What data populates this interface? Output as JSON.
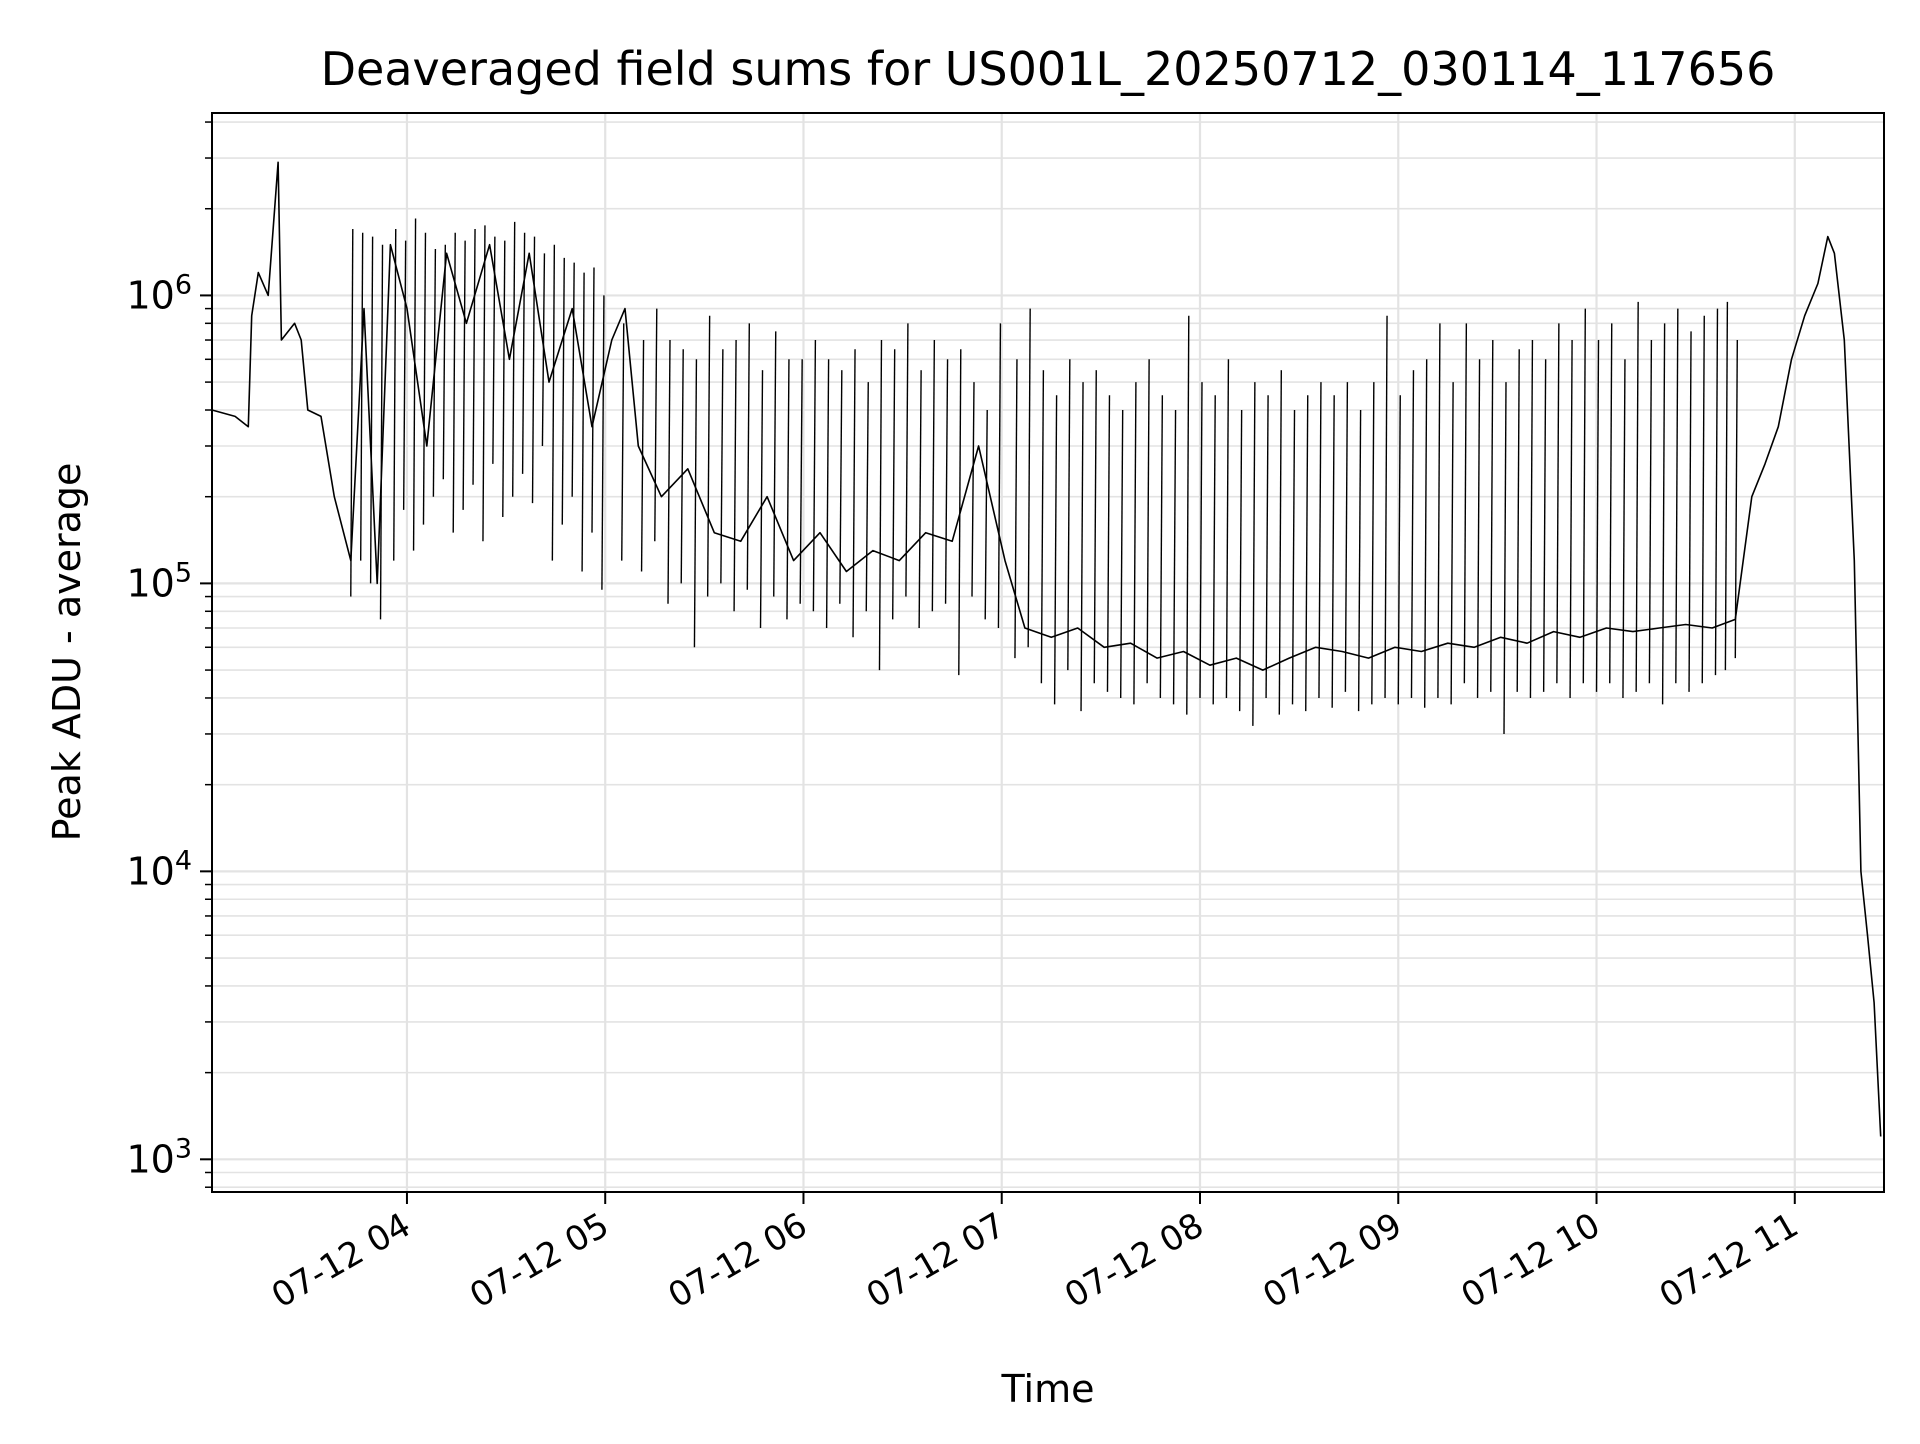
{
  "chart_data": {
    "type": "line",
    "title": "Deaveraged field sums for US001L_20250712_030114_117656",
    "xlabel": "Time",
    "ylabel": "Peak ADU - average",
    "yscale": "log",
    "grid": true,
    "legend": "none",
    "line_color": "#000000",
    "xlim": [
      "07-12 03:01",
      "07-12 11:27"
    ],
    "ylim": [
      770,
      4300000
    ],
    "x_ticks": [
      "07-12 04",
      "07-12 05",
      "07-12 06",
      "07-12 07",
      "07-12 08",
      "07-12 09",
      "07-12 10",
      "07-12 11"
    ],
    "x_tick_times": [
      "07-12 04:00",
      "07-12 05:00",
      "07-12 06:00",
      "07-12 07:00",
      "07-12 08:00",
      "07-12 09:00",
      "07-12 10:00",
      "07-12 11:00"
    ],
    "y_ticks": [
      {
        "value": 1000,
        "base": "10",
        "exp": "3"
      },
      {
        "value": 10000,
        "base": "10",
        "exp": "4"
      },
      {
        "value": 100000,
        "base": "10",
        "exp": "5"
      },
      {
        "value": 1000000,
        "base": "10",
        "exp": "6"
      }
    ],
    "series": [
      {
        "points": [
          [
            "07-12 03:01",
            400000
          ],
          [
            "07-12 03:08",
            380000
          ],
          [
            "07-12 03:12",
            350000
          ],
          [
            "07-12 03:13",
            850000
          ],
          [
            "07-12 03:15",
            1200000
          ],
          [
            "07-12 03:18",
            1000000
          ],
          [
            "07-12 03:21",
            2900000
          ],
          [
            "07-12 03:22",
            700000
          ],
          [
            "07-12 03:26",
            800000
          ],
          [
            "07-12 03:28",
            700000
          ],
          [
            "07-12 03:30",
            400000
          ],
          [
            "07-12 03:34",
            380000
          ],
          [
            "07-12 03:38",
            200000
          ],
          [
            "07-12 03:43",
            120000
          ],
          [
            "07-12 03:47",
            900000
          ],
          [
            "07-12 03:51",
            100000
          ],
          [
            "07-12 03:55",
            1500000
          ],
          [
            "07-12 04:00",
            900000
          ],
          [
            "07-12 04:06",
            300000
          ],
          [
            "07-12 04:12",
            1400000
          ],
          [
            "07-12 04:18",
            800000
          ],
          [
            "07-12 04:25",
            1500000
          ],
          [
            "07-12 04:31",
            600000
          ],
          [
            "07-12 04:37",
            1400000
          ],
          [
            "07-12 04:43",
            500000
          ],
          [
            "07-12 04:50",
            900000
          ],
          [
            "07-12 04:56",
            350000
          ],
          [
            "07-12 05:02",
            700000
          ],
          [
            "07-12 05:06",
            900000
          ],
          [
            "07-12 05:10",
            300000
          ],
          [
            "07-12 05:17",
            200000
          ],
          [
            "07-12 05:25",
            250000
          ],
          [
            "07-12 05:33",
            150000
          ],
          [
            "07-12 05:41",
            140000
          ],
          [
            "07-12 05:49",
            200000
          ],
          [
            "07-12 05:57",
            120000
          ],
          [
            "07-12 06:05",
            150000
          ],
          [
            "07-12 06:13",
            110000
          ],
          [
            "07-12 06:21",
            130000
          ],
          [
            "07-12 06:29",
            120000
          ],
          [
            "07-12 06:37",
            150000
          ],
          [
            "07-12 06:45",
            140000
          ],
          [
            "07-12 06:53",
            300000
          ],
          [
            "07-12 07:01",
            120000
          ],
          [
            "07-12 07:07",
            70000
          ],
          [
            "07-12 07:15",
            65000
          ],
          [
            "07-12 07:23",
            70000
          ],
          [
            "07-12 07:31",
            60000
          ],
          [
            "07-12 07:39",
            62000
          ],
          [
            "07-12 07:47",
            55000
          ],
          [
            "07-12 07:55",
            58000
          ],
          [
            "07-12 08:03",
            52000
          ],
          [
            "07-12 08:11",
            55000
          ],
          [
            "07-12 08:19",
            50000
          ],
          [
            "07-12 08:27",
            55000
          ],
          [
            "07-12 08:35",
            60000
          ],
          [
            "07-12 08:43",
            58000
          ],
          [
            "07-12 08:51",
            55000
          ],
          [
            "07-12 08:59",
            60000
          ],
          [
            "07-12 09:07",
            58000
          ],
          [
            "07-12 09:15",
            62000
          ],
          [
            "07-12 09:23",
            60000
          ],
          [
            "07-12 09:31",
            65000
          ],
          [
            "07-12 09:39",
            62000
          ],
          [
            "07-12 09:47",
            68000
          ],
          [
            "07-12 09:55",
            65000
          ],
          [
            "07-12 10:03",
            70000
          ],
          [
            "07-12 10:11",
            68000
          ],
          [
            "07-12 10:19",
            70000
          ],
          [
            "07-12 10:27",
            72000
          ],
          [
            "07-12 10:35",
            70000
          ],
          [
            "07-12 10:42",
            75000
          ],
          [
            "07-12 10:47",
            200000
          ],
          [
            "07-12 10:51",
            260000
          ],
          [
            "07-12 10:55",
            350000
          ],
          [
            "07-12 10:59",
            600000
          ],
          [
            "07-12 11:03",
            850000
          ],
          [
            "07-12 11:07",
            1100000
          ],
          [
            "07-12 11:10",
            1600000
          ],
          [
            "07-12 11:12",
            1400000
          ],
          [
            "07-12 11:15",
            700000
          ],
          [
            "07-12 11:18",
            120000
          ],
          [
            "07-12 11:20",
            10000
          ],
          [
            "07-12 11:22",
            6000
          ],
          [
            "07-12 11:24",
            3500
          ],
          [
            "07-12 11:26",
            1200
          ]
        ],
        "spikes": [
          [
            "07-12 03:43",
            90000,
            1700000
          ],
          [
            "07-12 03:46",
            120000,
            1650000
          ],
          [
            "07-12 03:49",
            100000,
            1600000
          ],
          [
            "07-12 03:52",
            75000,
            1500000
          ],
          [
            "07-12 03:56",
            120000,
            1700000
          ],
          [
            "07-12 03:59",
            180000,
            1550000
          ],
          [
            "07-12 04:02",
            130000,
            1850000
          ],
          [
            "07-12 04:05",
            160000,
            1650000
          ],
          [
            "07-12 04:08",
            200000,
            1450000
          ],
          [
            "07-12 04:11",
            230000,
            1500000
          ],
          [
            "07-12 04:14",
            150000,
            1650000
          ],
          [
            "07-12 04:17",
            180000,
            1550000
          ],
          [
            "07-12 04:20",
            220000,
            1700000
          ],
          [
            "07-12 04:23",
            140000,
            1750000
          ],
          [
            "07-12 04:26",
            260000,
            1600000
          ],
          [
            "07-12 04:29",
            170000,
            1550000
          ],
          [
            "07-12 04:32",
            200000,
            1800000
          ],
          [
            "07-12 04:35",
            240000,
            1650000
          ],
          [
            "07-12 04:38",
            190000,
            1600000
          ],
          [
            "07-12 04:41",
            300000,
            1400000
          ],
          [
            "07-12 04:44",
            120000,
            1500000
          ],
          [
            "07-12 04:47",
            160000,
            1350000
          ],
          [
            "07-12 04:50",
            200000,
            1300000
          ],
          [
            "07-12 04:53",
            110000,
            1200000
          ],
          [
            "07-12 04:56",
            150000,
            1250000
          ],
          [
            "07-12 04:59",
            95000,
            1000000
          ],
          [
            "07-12 05:05",
            120000,
            800000
          ],
          [
            "07-12 05:11",
            110000,
            700000
          ],
          [
            "07-12 05:15",
            140000,
            900000
          ],
          [
            "07-12 05:19",
            85000,
            700000
          ],
          [
            "07-12 05:23",
            100000,
            650000
          ],
          [
            "07-12 05:27",
            60000,
            600000
          ],
          [
            "07-12 05:31",
            90000,
            850000
          ],
          [
            "07-12 05:35",
            100000,
            650000
          ],
          [
            "07-12 05:39",
            80000,
            700000
          ],
          [
            "07-12 05:43",
            95000,
            800000
          ],
          [
            "07-12 05:47",
            70000,
            550000
          ],
          [
            "07-12 05:51",
            90000,
            750000
          ],
          [
            "07-12 05:55",
            75000,
            600000
          ],
          [
            "07-12 05:59",
            85000,
            600000
          ],
          [
            "07-12 06:03",
            80000,
            700000
          ],
          [
            "07-12 06:07",
            70000,
            600000
          ],
          [
            "07-12 06:11",
            85000,
            550000
          ],
          [
            "07-12 06:15",
            65000,
            650000
          ],
          [
            "07-12 06:19",
            80000,
            500000
          ],
          [
            "07-12 06:23",
            50000,
            700000
          ],
          [
            "07-12 06:27",
            75000,
            650000
          ],
          [
            "07-12 06:31",
            90000,
            800000
          ],
          [
            "07-12 06:35",
            70000,
            550000
          ],
          [
            "07-12 06:39",
            80000,
            700000
          ],
          [
            "07-12 06:43",
            85000,
            600000
          ],
          [
            "07-12 06:47",
            48000,
            650000
          ],
          [
            "07-12 06:51",
            90000,
            500000
          ],
          [
            "07-12 06:55",
            75000,
            400000
          ],
          [
            "07-12 06:59",
            70000,
            800000
          ],
          [
            "07-12 07:04",
            55000,
            600000
          ],
          [
            "07-12 07:08",
            60000,
            900000
          ],
          [
            "07-12 07:12",
            45000,
            550000
          ],
          [
            "07-12 07:16",
            38000,
            450000
          ],
          [
            "07-12 07:20",
            50000,
            600000
          ],
          [
            "07-12 07:24",
            36000,
            500000
          ],
          [
            "07-12 07:28",
            45000,
            550000
          ],
          [
            "07-12 07:32",
            42000,
            450000
          ],
          [
            "07-12 07:36",
            40000,
            400000
          ],
          [
            "07-12 07:40",
            38000,
            500000
          ],
          [
            "07-12 07:44",
            45000,
            600000
          ],
          [
            "07-12 07:48",
            40000,
            450000
          ],
          [
            "07-12 07:52",
            38000,
            400000
          ],
          [
            "07-12 07:56",
            35000,
            850000
          ],
          [
            "07-12 08:00",
            40000,
            500000
          ],
          [
            "07-12 08:04",
            38000,
            450000
          ],
          [
            "07-12 08:08",
            40000,
            600000
          ],
          [
            "07-12 08:12",
            36000,
            400000
          ],
          [
            "07-12 08:16",
            32000,
            500000
          ],
          [
            "07-12 08:20",
            40000,
            450000
          ],
          [
            "07-12 08:24",
            35000,
            550000
          ],
          [
            "07-12 08:28",
            38000,
            400000
          ],
          [
            "07-12 08:32",
            36000,
            450000
          ],
          [
            "07-12 08:36",
            40000,
            500000
          ],
          [
            "07-12 08:40",
            37000,
            450000
          ],
          [
            "07-12 08:44",
            42000,
            500000
          ],
          [
            "07-12 08:48",
            36000,
            400000
          ],
          [
            "07-12 08:52",
            38000,
            500000
          ],
          [
            "07-12 08:56",
            40000,
            850000
          ],
          [
            "07-12 09:00",
            38000,
            450000
          ],
          [
            "07-12 09:04",
            40000,
            550000
          ],
          [
            "07-12 09:08",
            37000,
            600000
          ],
          [
            "07-12 09:12",
            40000,
            800000
          ],
          [
            "07-12 09:16",
            38000,
            500000
          ],
          [
            "07-12 09:20",
            45000,
            800000
          ],
          [
            "07-12 09:24",
            40000,
            600000
          ],
          [
            "07-12 09:28",
            42000,
            700000
          ],
          [
            "07-12 09:32",
            30000,
            500000
          ],
          [
            "07-12 09:36",
            42000,
            650000
          ],
          [
            "07-12 09:40",
            40000,
            700000
          ],
          [
            "07-12 09:44",
            42000,
            600000
          ],
          [
            "07-12 09:48",
            45000,
            800000
          ],
          [
            "07-12 09:52",
            40000,
            700000
          ],
          [
            "07-12 09:56",
            45000,
            900000
          ],
          [
            "07-12 10:00",
            42000,
            700000
          ],
          [
            "07-12 10:04",
            45000,
            800000
          ],
          [
            "07-12 10:08",
            40000,
            600000
          ],
          [
            "07-12 10:12",
            42000,
            950000
          ],
          [
            "07-12 10:16",
            45000,
            700000
          ],
          [
            "07-12 10:20",
            38000,
            800000
          ],
          [
            "07-12 10:24",
            45000,
            900000
          ],
          [
            "07-12 10:28",
            42000,
            750000
          ],
          [
            "07-12 10:32",
            45000,
            850000
          ],
          [
            "07-12 10:36",
            48000,
            900000
          ],
          [
            "07-12 10:39",
            50000,
            950000
          ],
          [
            "07-12 10:42",
            55000,
            700000
          ]
        ]
      }
    ]
  }
}
